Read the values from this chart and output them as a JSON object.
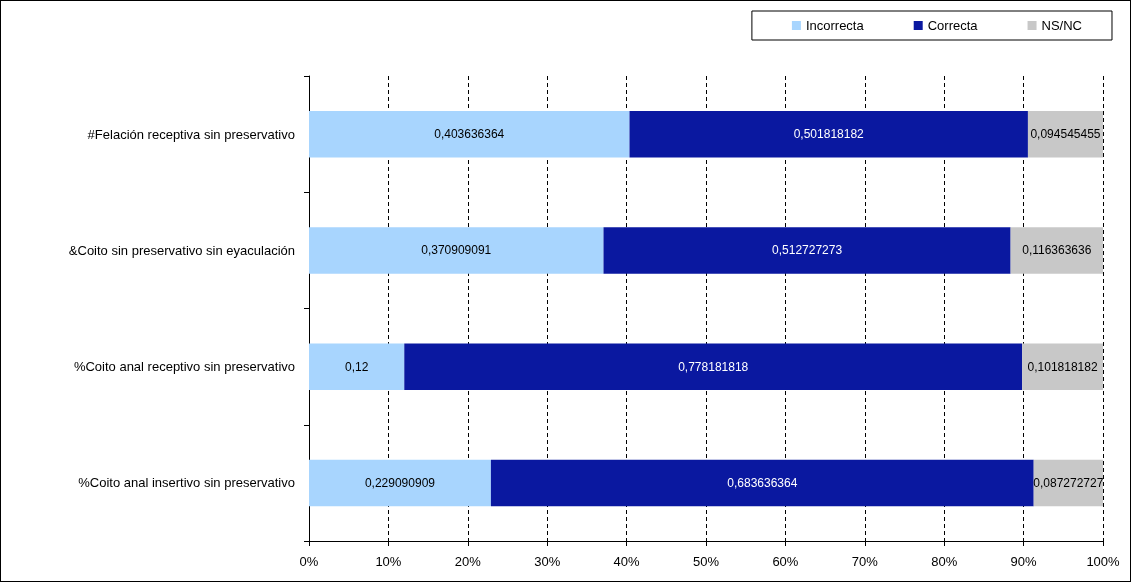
{
  "chart_data": {
    "type": "bar",
    "orientation": "horizontal",
    "stacked": true,
    "categories": [
      "#Felación receptiva sin preservativo",
      "&Coito sin preservativo sin eyaculación",
      "%Coito anal receptivo sin preservativo",
      "%Coito anal insertivo sin preservativo"
    ],
    "series": [
      {
        "name": "Incorrecta",
        "color": "#a8d5fe",
        "values": [
          0.403636364,
          0.370909091,
          0.12,
          0.229090909
        ],
        "value_labels": [
          "0,403636364",
          "0,370909091",
          "0,12",
          "0,229090909"
        ]
      },
      {
        "name": "Correcta",
        "color": "#0a18a0",
        "values": [
          0.501818182,
          0.512727273,
          0.778181818,
          0.683636364
        ],
        "value_labels": [
          "0,501818182",
          "0,512727273",
          "0,778181818",
          "0,683636364"
        ]
      },
      {
        "name": "NS/NC",
        "color": "#c8c8c8",
        "values": [
          0.094545455,
          0.116363636,
          0.101818182,
          0.087272727
        ],
        "value_labels": [
          "0,094545455",
          "0,116363636",
          "0,101818182",
          "0,087272727"
        ]
      }
    ],
    "xlim": [
      0,
      1
    ],
    "xticks": [
      {
        "value": 0,
        "label": "0%"
      },
      {
        "value": 0.1,
        "label": "10%"
      },
      {
        "value": 0.2,
        "label": "20%"
      },
      {
        "value": 0.3,
        "label": "30%"
      },
      {
        "value": 0.4,
        "label": "40%"
      },
      {
        "value": 0.5,
        "label": "50%"
      },
      {
        "value": 0.6,
        "label": "60%"
      },
      {
        "value": 0.7,
        "label": "70%"
      },
      {
        "value": 0.8,
        "label": "80%"
      },
      {
        "value": 0.9,
        "label": "90%"
      },
      {
        "value": 1,
        "label": "100%"
      }
    ],
    "grid": "x",
    "legend": "top right"
  }
}
